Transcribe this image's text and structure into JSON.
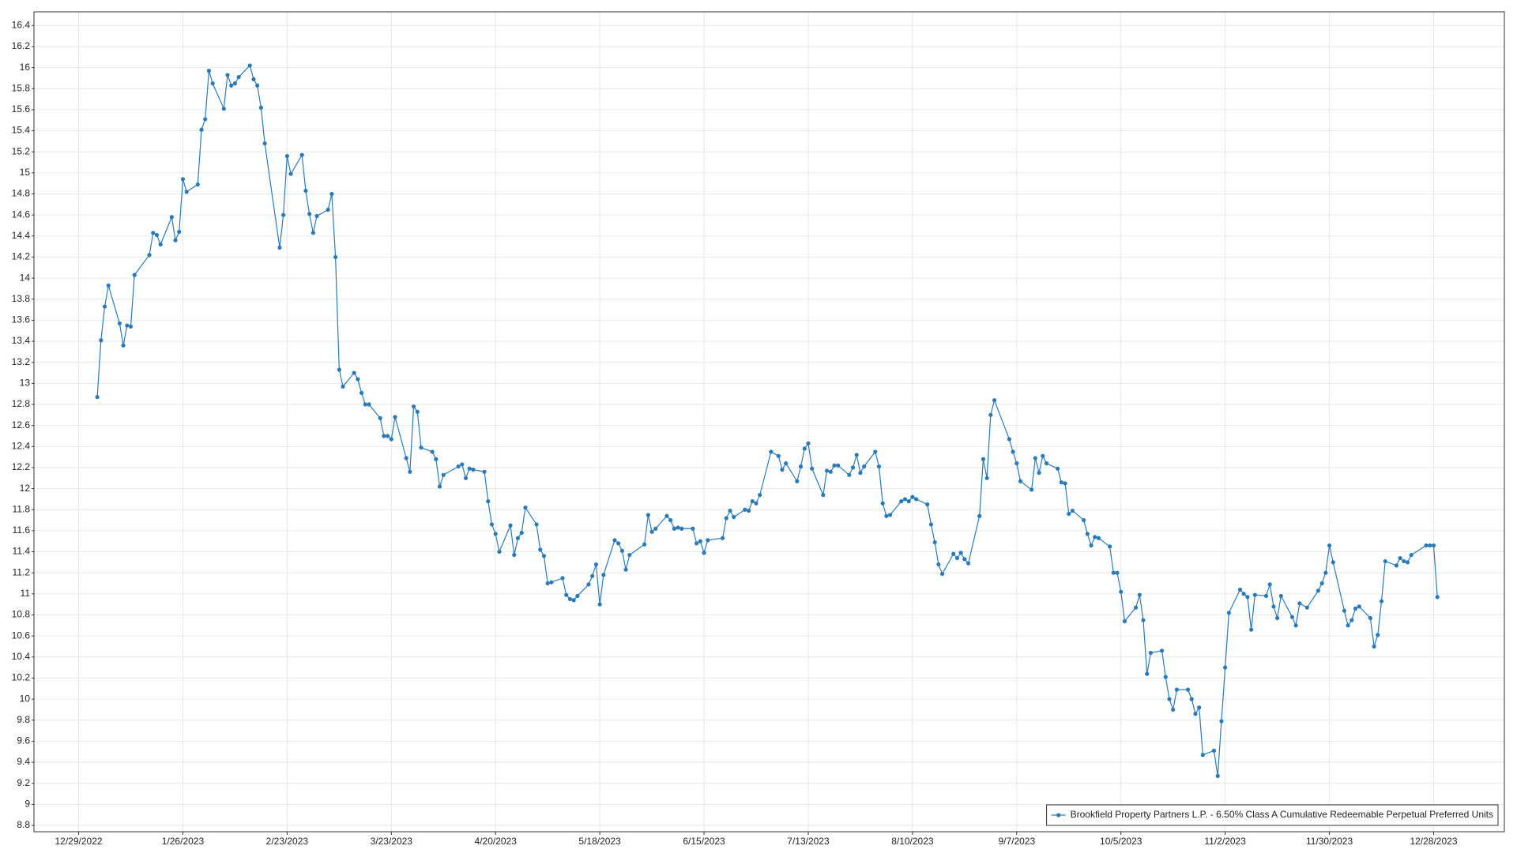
{
  "chart_data": {
    "type": "line",
    "x": [
      "1/3/2023",
      "1/4/2023",
      "1/5/2023",
      "1/6/2023",
      "1/9/2023",
      "1/10/2023",
      "1/11/2023",
      "1/12/2023",
      "1/13/2023",
      "1/17/2023",
      "1/18/2023",
      "1/19/2023",
      "1/20/2023",
      "1/23/2023",
      "1/24/2023",
      "1/25/2023",
      "1/26/2023",
      "1/27/2023",
      "1/30/2023",
      "1/31/2023",
      "2/1/2023",
      "2/2/2023",
      "2/3/2023",
      "2/6/2023",
      "2/7/2023",
      "2/8/2023",
      "2/9/2023",
      "2/10/2023",
      "2/13/2023",
      "2/14/2023",
      "2/15/2023",
      "2/16/2023",
      "2/17/2023",
      "2/21/2023",
      "2/22/2023",
      "2/23/2023",
      "2/24/2023",
      "2/27/2023",
      "2/28/2023",
      "3/1/2023",
      "3/2/2023",
      "3/3/2023",
      "3/6/2023",
      "3/7/2023",
      "3/8/2023",
      "3/9/2023",
      "3/10/2023",
      "3/13/2023",
      "3/14/2023",
      "3/15/2023",
      "3/16/2023",
      "3/17/2023",
      "3/20/2023",
      "3/21/2023",
      "3/22/2023",
      "3/23/2023",
      "3/24/2023",
      "3/27/2023",
      "3/28/2023",
      "3/29/2023",
      "3/30/2023",
      "3/31/2023",
      "4/3/2023",
      "4/4/2023",
      "4/5/2023",
      "4/6/2023",
      "4/10/2023",
      "4/11/2023",
      "4/12/2023",
      "4/13/2023",
      "4/14/2023",
      "4/17/2023",
      "4/18/2023",
      "4/19/2023",
      "4/20/2023",
      "4/21/2023",
      "4/24/2023",
      "4/25/2023",
      "4/26/2023",
      "4/27/2023",
      "4/28/2023",
      "5/1/2023",
      "5/2/2023",
      "5/3/2023",
      "5/4/2023",
      "5/5/2023",
      "5/8/2023",
      "5/9/2023",
      "5/10/2023",
      "5/11/2023",
      "5/12/2023",
      "5/15/2023",
      "5/16/2023",
      "5/17/2023",
      "5/18/2023",
      "5/19/2023",
      "5/22/2023",
      "5/23/2023",
      "5/24/2023",
      "5/25/2023",
      "5/26/2023",
      "5/30/2023",
      "5/31/2023",
      "6/1/2023",
      "6/2/2023",
      "6/5/2023",
      "6/6/2023",
      "6/7/2023",
      "6/8/2023",
      "6/9/2023",
      "6/12/2023",
      "6/13/2023",
      "6/14/2023",
      "6/15/2023",
      "6/16/2023",
      "6/20/2023",
      "6/21/2023",
      "6/22/2023",
      "6/23/2023",
      "6/26/2023",
      "6/27/2023",
      "6/28/2023",
      "6/29/2023",
      "6/30/2023",
      "7/3/2023",
      "7/5/2023",
      "7/6/2023",
      "7/7/2023",
      "7/10/2023",
      "7/11/2023",
      "7/12/2023",
      "7/13/2023",
      "7/14/2023",
      "7/17/2023",
      "7/18/2023",
      "7/19/2023",
      "7/20/2023",
      "7/21/2023",
      "7/24/2023",
      "7/25/2023",
      "7/26/2023",
      "7/27/2023",
      "7/28/2023",
      "7/31/2023",
      "8/1/2023",
      "8/2/2023",
      "8/3/2023",
      "8/4/2023",
      "8/7/2023",
      "8/8/2023",
      "8/9/2023",
      "8/10/2023",
      "8/11/2023",
      "8/14/2023",
      "8/15/2023",
      "8/16/2023",
      "8/17/2023",
      "8/18/2023",
      "8/21/2023",
      "8/22/2023",
      "8/23/2023",
      "8/24/2023",
      "8/25/2023",
      "8/28/2023",
      "8/29/2023",
      "8/30/2023",
      "8/31/2023",
      "9/1/2023",
      "9/5/2023",
      "9/6/2023",
      "9/7/2023",
      "9/8/2023",
      "9/11/2023",
      "9/12/2023",
      "9/13/2023",
      "9/14/2023",
      "9/15/2023",
      "9/18/2023",
      "9/19/2023",
      "9/20/2023",
      "9/21/2023",
      "9/22/2023",
      "9/25/2023",
      "9/26/2023",
      "9/27/2023",
      "9/28/2023",
      "9/29/2023",
      "10/2/2023",
      "10/3/2023",
      "10/4/2023",
      "10/5/2023",
      "10/6/2023",
      "10/9/2023",
      "10/10/2023",
      "10/11/2023",
      "10/12/2023",
      "10/13/2023",
      "10/16/2023",
      "10/17/2023",
      "10/18/2023",
      "10/19/2023",
      "10/20/2023",
      "10/23/2023",
      "10/24/2023",
      "10/25/2023",
      "10/26/2023",
      "10/27/2023",
      "10/30/2023",
      "10/31/2023",
      "11/1/2023",
      "11/2/2023",
      "11/3/2023",
      "11/6/2023",
      "11/7/2023",
      "11/8/2023",
      "11/9/2023",
      "11/10/2023",
      "11/13/2023",
      "11/14/2023",
      "11/15/2023",
      "11/16/2023",
      "11/17/2023",
      "11/20/2023",
      "11/21/2023",
      "11/22/2023",
      "11/24/2023",
      "11/27/2023",
      "11/28/2023",
      "11/29/2023",
      "11/30/2023",
      "12/1/2023",
      "12/4/2023",
      "12/5/2023",
      "12/6/2023",
      "12/7/2023",
      "12/8/2023",
      "12/11/2023",
      "12/12/2023",
      "12/13/2023",
      "12/14/2023",
      "12/15/2023",
      "12/18/2023",
      "12/19/2023",
      "12/20/2023",
      "12/21/2023",
      "12/22/2023",
      "12/26/2023",
      "12/27/2023",
      "12/28/2023",
      "12/29/2023"
    ],
    "series": [
      {
        "name": "Brookfield Property Partners L.P. - 6.50% Class A Cumulative Redeemable Perpetual Preferred Units",
        "color": "#2a7ab8",
        "values": [
          12.87,
          13.41,
          13.73,
          13.93,
          13.57,
          13.36,
          13.55,
          13.54,
          14.03,
          14.22,
          14.43,
          14.41,
          14.32,
          14.58,
          14.36,
          14.44,
          14.94,
          14.82,
          14.89,
          15.41,
          15.51,
          15.97,
          15.85,
          15.61,
          15.93,
          15.83,
          15.85,
          15.91,
          16.02,
          15.89,
          15.83,
          15.62,
          15.28,
          14.29,
          14.6,
          15.16,
          14.99,
          15.17,
          14.83,
          14.61,
          14.43,
          14.59,
          14.65,
          14.8,
          14.2,
          13.13,
          12.97,
          13.1,
          13.04,
          12.91,
          12.8,
          12.8,
          12.67,
          12.5,
          12.5,
          12.47,
          12.68,
          12.29,
          12.16,
          12.78,
          12.73,
          12.39,
          12.35,
          12.28,
          12.02,
          12.13,
          12.21,
          12.23,
          12.1,
          12.19,
          12.18,
          12.16,
          11.88,
          11.66,
          11.57,
          11.4,
          11.65,
          11.37,
          11.53,
          11.58,
          11.82,
          11.66,
          11.42,
          11.36,
          11.1,
          11.11,
          11.15,
          10.99,
          10.95,
          10.94,
          10.98,
          11.09,
          11.17,
          11.28,
          10.9,
          11.18,
          11.51,
          11.48,
          11.41,
          11.23,
          11.37,
          11.47,
          11.75,
          11.59,
          11.62,
          11.74,
          11.7,
          11.62,
          11.63,
          11.62,
          11.62,
          11.48,
          11.5,
          11.39,
          11.51,
          11.53,
          11.72,
          11.79,
          11.73,
          11.8,
          11.79,
          11.88,
          11.86,
          11.94,
          12.35,
          12.31,
          12.18,
          12.24,
          12.07,
          12.21,
          12.38,
          12.43,
          12.19,
          11.94,
          12.17,
          12.16,
          12.22,
          12.22,
          12.13,
          12.2,
          12.32,
          12.15,
          12.21,
          12.35,
          12.21,
          11.86,
          11.74,
          11.75,
          11.88,
          11.9,
          11.88,
          11.92,
          11.9,
          11.85,
          11.66,
          11.49,
          11.28,
          11.19,
          11.38,
          11.34,
          11.39,
          11.33,
          11.29,
          11.74,
          12.28,
          12.1,
          12.7,
          12.84,
          12.47,
          12.35,
          12.24,
          12.07,
          11.99,
          12.29,
          12.15,
          12.31,
          12.24,
          12.19,
          12.06,
          12.05,
          11.76,
          11.79,
          11.7,
          11.57,
          11.46,
          11.54,
          11.53,
          11.45,
          11.2,
          11.2,
          11.02,
          10.74,
          10.87,
          10.99,
          10.75,
          10.24,
          10.44,
          10.46,
          10.21,
          10.0,
          9.9,
          10.09,
          10.09,
          10.0,
          9.86,
          9.92,
          9.47,
          9.51,
          9.27,
          9.79,
          10.3,
          10.82,
          11.04,
          11.0,
          10.97,
          10.66,
          10.99,
          10.98,
          11.09,
          10.88,
          10.77,
          10.98,
          10.78,
          10.7,
          10.91,
          10.87,
          11.03,
          11.1,
          11.2,
          11.46,
          11.3,
          10.84,
          10.7,
          10.75,
          10.86,
          10.88,
          10.77,
          10.5,
          10.61,
          10.93,
          11.31,
          11.27,
          11.34,
          11.31,
          11.3,
          11.37,
          11.46,
          11.46,
          11.46,
          10.97
        ]
      }
    ],
    "xlim": [
      "12/17/2022",
      "1/16/2024"
    ],
    "xticks": [
      "12/29/2022",
      "1/26/2023",
      "2/23/2023",
      "3/23/2023",
      "4/20/2023",
      "5/18/2023",
      "6/15/2023",
      "7/13/2023",
      "8/10/2023",
      "9/7/2023",
      "10/5/2023",
      "11/2/2023",
      "11/30/2023",
      "12/28/2023"
    ],
    "ylim": [
      8.74,
      16.53
    ],
    "yticks": [
      8.8,
      9,
      9.2,
      9.4,
      9.6,
      9.8,
      10,
      10.2,
      10.4,
      10.6,
      10.8,
      11,
      11.2,
      11.4,
      11.6,
      11.8,
      12,
      12.2,
      12.4,
      12.6,
      12.8,
      13,
      13.2,
      13.4,
      13.6,
      13.8,
      14,
      14.2,
      14.4,
      14.6,
      14.8,
      15,
      15.2,
      15.4,
      15.6,
      15.8,
      16,
      16.2,
      16.4
    ],
    "grid": true,
    "legend": "lower right"
  }
}
